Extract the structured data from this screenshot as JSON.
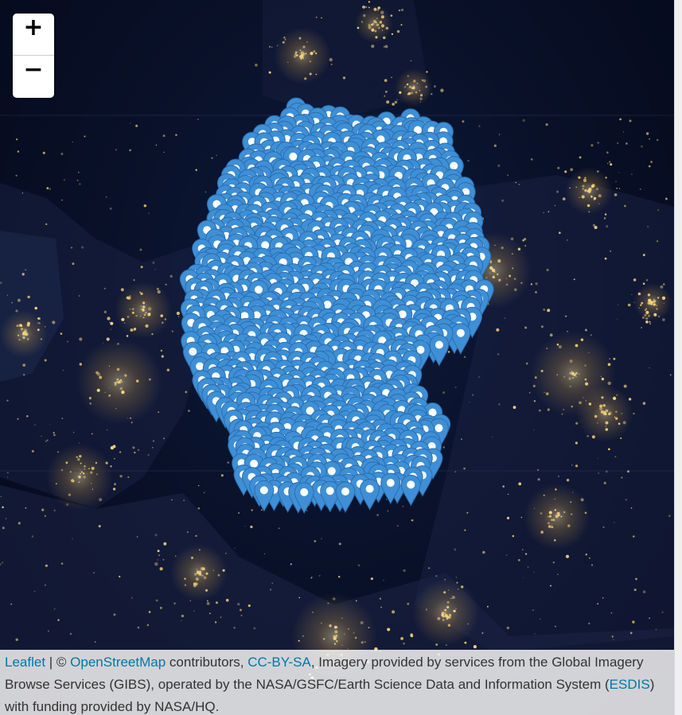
{
  "zoom": {
    "in_label": "+",
    "out_label": "−"
  },
  "attribution": {
    "leaflet": "Leaflet",
    "sep": " | © ",
    "osm": "OpenStreetMap",
    "contributors": " contributors, ",
    "license": "CC-BY-SA",
    "imagery_a": ", Imagery provided by services from the Global Imagery Browse Services (GIBS), operated by the NASA/GSFC/Earth Science Data and Information System (",
    "esdis": "ESDIS",
    "imagery_b": ") with funding provided by NASA/HQ."
  },
  "colors": {
    "marker": "#3e8fd6",
    "marker_dark": "#2a6fb0",
    "lights": "#f6d27a",
    "sea": "#070d22"
  },
  "icons": {
    "marker": "map-marker-icon"
  }
}
